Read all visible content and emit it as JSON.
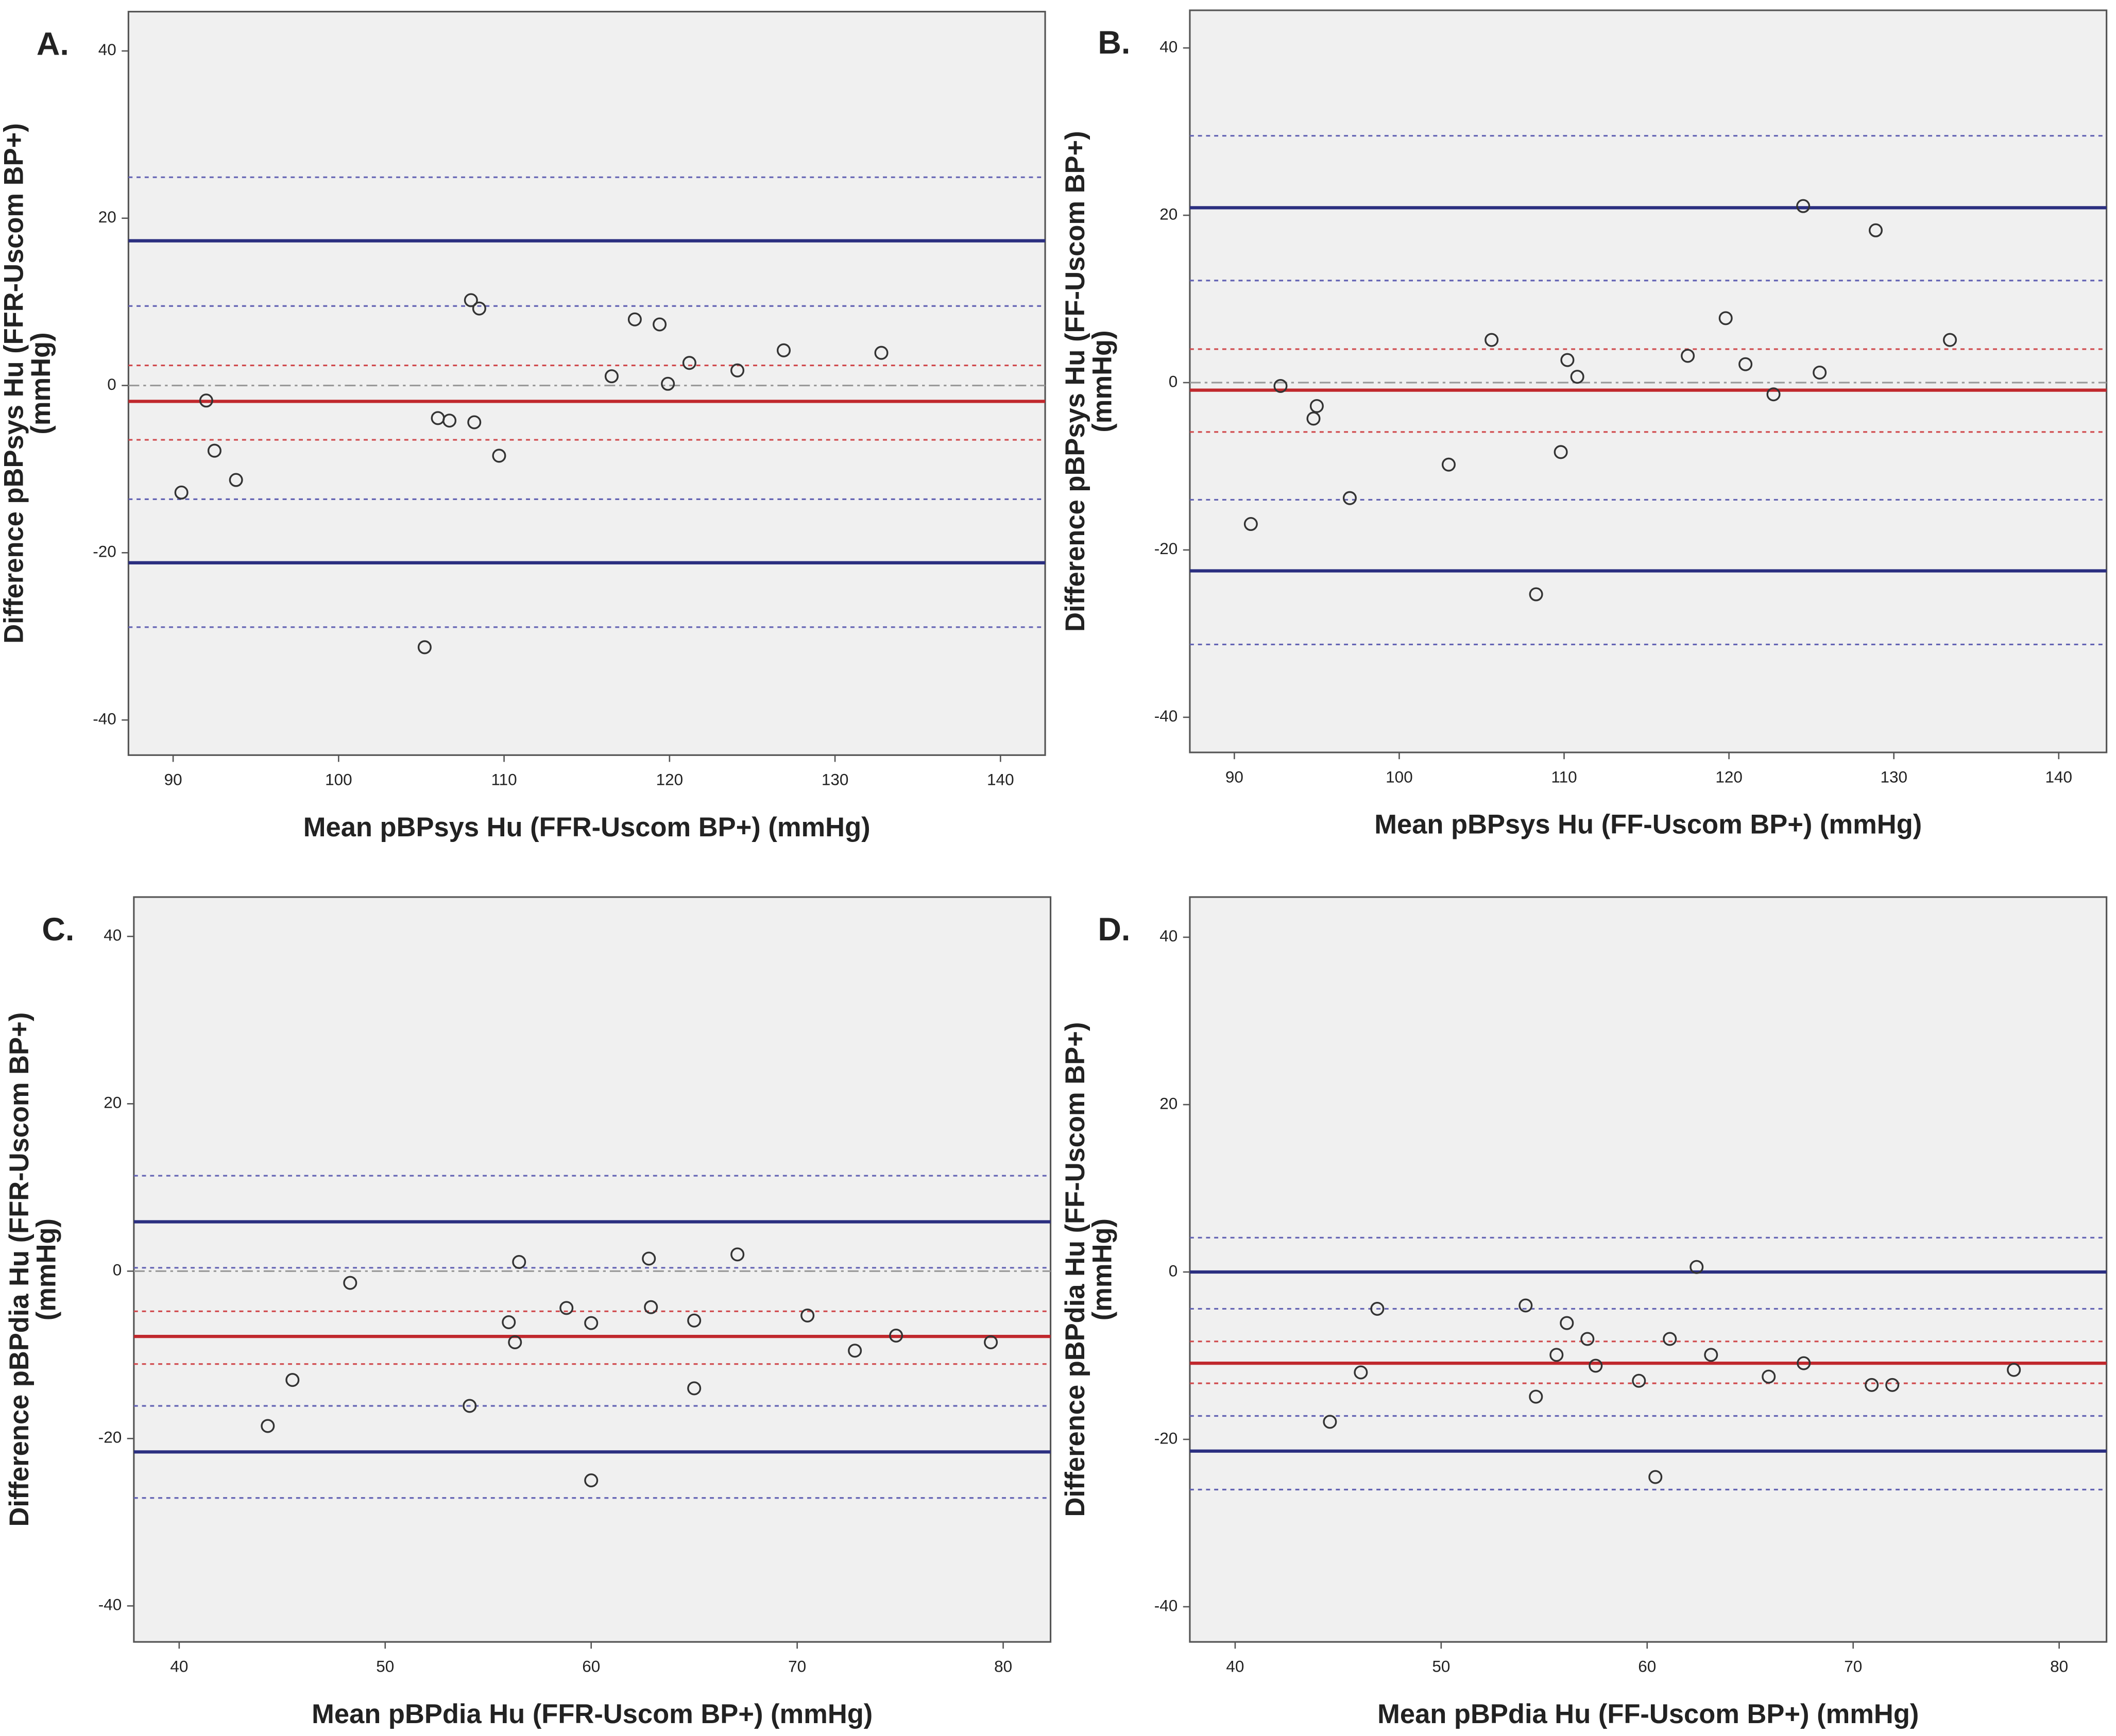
{
  "chart_data": [
    {
      "type": "scatter",
      "panel_label": "A.",
      "xlabel": "Mean pBPsys Hu (FFR-Uscom BP+) (mmHg)",
      "ylabel": [
        "Difference pBPsys Hu (FFR-Uscom BP+)",
        "(mmHg)"
      ],
      "x": [
        90.5,
        92.0,
        92.5,
        93.8,
        105.2,
        106.0,
        106.7,
        108.0,
        108.2,
        108.5,
        109.7,
        116.5,
        117.9,
        119.4,
        119.9,
        121.2,
        124.1,
        126.9,
        132.8
      ],
      "values": [
        -12.8,
        -1.8,
        -7.8,
        -11.3,
        -31.3,
        -3.9,
        -4.2,
        10.2,
        -4.4,
        9.2,
        -8.4,
        1.1,
        7.9,
        7.3,
        0.2,
        2.7,
        1.8,
        4.2,
        3.9
      ],
      "xlim": [
        87.3,
        142.7
      ],
      "ylim": [
        -44.2,
        44.7
      ],
      "xticks": [
        90,
        100,
        110,
        120,
        130,
        140
      ],
      "yticks": [
        -40,
        -20,
        0,
        20,
        40
      ],
      "lines": [
        {
          "value": 0,
          "color": "#999999",
          "style": "dashdot"
        },
        {
          "value": 24.9,
          "color": "#6464b4",
          "style": "dashed"
        },
        {
          "value": 17.3,
          "color": "#2b2f80",
          "style": "solid"
        },
        {
          "value": 9.5,
          "color": "#6464b4",
          "style": "dashed"
        },
        {
          "value": 2.4,
          "color": "#d04a4d",
          "style": "dashed"
        },
        {
          "value": -1.9,
          "color": "#c0282d",
          "style": "solid"
        },
        {
          "value": -6.5,
          "color": "#d04a4d",
          "style": "dashed"
        },
        {
          "value": -13.6,
          "color": "#6464b4",
          "style": "dashed"
        },
        {
          "value": -21.2,
          "color": "#2b2f80",
          "style": "solid"
        },
        {
          "value": -28.9,
          "color": "#6464b4",
          "style": "dashed"
        }
      ]
    },
    {
      "type": "scatter",
      "panel_label": "B.",
      "xlabel": "Mean pBPsys Hu (FF-Uscom BP+) (mmHg)",
      "ylabel": [
        "Difference pBPsys Hu (FF-Uscom BP+)",
        "(mmHg)"
      ],
      "x": [
        91.0,
        92.8,
        95.0,
        94.8,
        97.0,
        103.0,
        105.6,
        108.3,
        109.8,
        110.2,
        110.8,
        117.5,
        119.8,
        121.0,
        122.7,
        124.5,
        125.5,
        128.9,
        133.4
      ],
      "values": [
        -16.9,
        -0.4,
        -2.8,
        -4.3,
        -13.8,
        -9.8,
        5.1,
        -25.3,
        -8.3,
        2.7,
        0.7,
        3.2,
        7.7,
        2.2,
        -1.4,
        21.1,
        1.2,
        18.2,
        5.1
      ],
      "xlim": [
        87.3,
        142.9
      ],
      "ylim": [
        -44.2,
        44.5
      ],
      "xticks": [
        90,
        100,
        110,
        120,
        130,
        140
      ],
      "yticks": [
        -40,
        -20,
        0,
        20,
        40
      ],
      "lines": [
        {
          "value": 0,
          "color": "#999999",
          "style": "dashdot"
        },
        {
          "value": 29.5,
          "color": "#6464b4",
          "style": "dashed"
        },
        {
          "value": 20.9,
          "color": "#2b2f80",
          "style": "solid"
        },
        {
          "value": 12.2,
          "color": "#6464b4",
          "style": "dashed"
        },
        {
          "value": 4.0,
          "color": "#d04a4d",
          "style": "dashed"
        },
        {
          "value": -0.9,
          "color": "#c0282d",
          "style": "solid"
        },
        {
          "value": -5.9,
          "color": "#d04a4d",
          "style": "dashed"
        },
        {
          "value": -14.0,
          "color": "#6464b4",
          "style": "dashed"
        },
        {
          "value": -22.5,
          "color": "#2b2f80",
          "style": "solid"
        },
        {
          "value": -31.3,
          "color": "#6464b4",
          "style": "dashed"
        }
      ]
    },
    {
      "type": "scatter",
      "panel_label": "C.",
      "xlabel": "Mean pBPdia Hu (FFR-Uscom BP+) (mmHg)",
      "ylabel": [
        "Difference pBPdia Hu (FFR-Uscom BP+)",
        "(mmHg)"
      ],
      "x": [
        44.3,
        45.5,
        48.3,
        54.1,
        56.0,
        56.3,
        56.5,
        58.8,
        60.0,
        60.0,
        62.8,
        62.9,
        65.0,
        65.0,
        67.1,
        70.5,
        72.8,
        74.8,
        79.4
      ],
      "values": [
        -18.5,
        -13.0,
        -1.4,
        -16.1,
        -6.1,
        -8.5,
        1.1,
        -4.4,
        -6.2,
        -25.0,
        1.5,
        -4.3,
        -5.9,
        -14.0,
        2.0,
        -5.3,
        -9.5,
        -7.7,
        -8.5
      ],
      "xlim": [
        37.8,
        82.3
      ],
      "ylim": [
        -44.3,
        44.7
      ],
      "xticks": [
        40,
        50,
        60,
        70,
        80
      ],
      "yticks": [
        -40,
        -20,
        0,
        20,
        40
      ],
      "lines": [
        {
          "value": 0,
          "color": "#999999",
          "style": "dashdot"
        },
        {
          "value": 11.4,
          "color": "#6464b4",
          "style": "dashed"
        },
        {
          "value": 5.9,
          "color": "#2b2f80",
          "style": "solid"
        },
        {
          "value": 0.4,
          "color": "#6464b4",
          "style": "dashed"
        },
        {
          "value": -4.8,
          "color": "#d04a4d",
          "style": "dashed"
        },
        {
          "value": -7.8,
          "color": "#c0282d",
          "style": "solid"
        },
        {
          "value": -11.1,
          "color": "#d04a4d",
          "style": "dashed"
        },
        {
          "value": -16.1,
          "color": "#6464b4",
          "style": "dashed"
        },
        {
          "value": -21.6,
          "color": "#2b2f80",
          "style": "solid"
        },
        {
          "value": -27.1,
          "color": "#6464b4",
          "style": "dashed"
        }
      ]
    },
    {
      "type": "scatter",
      "panel_label": "D.",
      "xlabel": "Mean pBPdia Hu (FF-Uscom BP+) (mmHg)",
      "ylabel": [
        "Difference pBPdia Hu (FF-Uscom BP+)",
        "(mmHg)"
      ],
      "x": [
        44.6,
        46.1,
        46.9,
        54.1,
        54.6,
        55.6,
        56.1,
        57.1,
        57.5,
        59.6,
        60.4,
        61.1,
        62.4,
        63.1,
        65.9,
        67.6,
        70.9,
        71.9,
        77.8
      ],
      "values": [
        -17.9,
        -12.0,
        -4.4,
        -4.0,
        -14.9,
        -9.9,
        -6.1,
        -8.0,
        -11.2,
        -13.0,
        -24.5,
        -8.0,
        0.6,
        -9.9,
        -12.5,
        -10.9,
        -13.5,
        -13.5,
        -11.7
      ],
      "xlim": [
        37.8,
        82.3
      ],
      "ylim": [
        -44.2,
        44.8
      ],
      "xticks": [
        40,
        50,
        60,
        70,
        80
      ],
      "yticks": [
        -40,
        -20,
        0,
        20,
        40
      ],
      "lines": [
        {
          "value": 4.1,
          "color": "#6464b4",
          "style": "dashed"
        },
        {
          "value": 0,
          "color": "#2b2f80",
          "style": "solid"
        },
        {
          "value": -4.4,
          "color": "#6464b4",
          "style": "dashed"
        },
        {
          "value": -8.3,
          "color": "#d04a4d",
          "style": "dashed"
        },
        {
          "value": -10.9,
          "color": "#c0282d",
          "style": "solid"
        },
        {
          "value": -13.3,
          "color": "#d04a4d",
          "style": "dashed"
        },
        {
          "value": -17.2,
          "color": "#6464b4",
          "style": "dashed"
        },
        {
          "value": -21.4,
          "color": "#2b2f80",
          "style": "solid"
        },
        {
          "value": -26.0,
          "color": "#6464b4",
          "style": "dashed"
        }
      ]
    }
  ]
}
